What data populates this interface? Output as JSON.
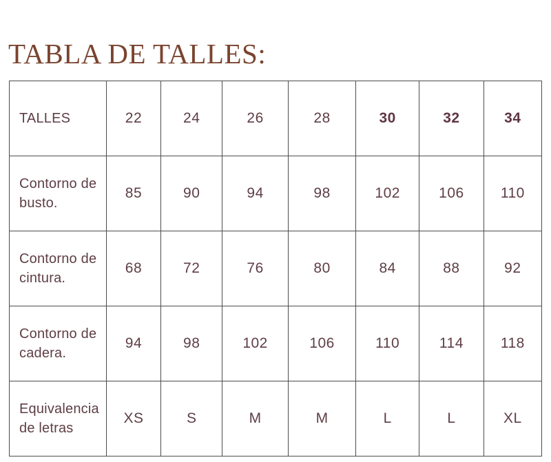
{
  "title": "TABLA DE TALLES:",
  "colors": {
    "title_text": "#7a4430",
    "table_text": "#5e3e45",
    "border": "#4b4b4b",
    "background": "#ffffff"
  },
  "table": {
    "rows": [
      {
        "label": "TALLES",
        "values": [
          "22",
          "24",
          "26",
          "28",
          "30",
          "32",
          "34"
        ],
        "emphasized": [
          "30",
          "32",
          "34"
        ]
      },
      {
        "label": "Contorno de busto.",
        "values": [
          "85",
          "90",
          "94",
          "98",
          "102",
          "106",
          "110"
        ],
        "emphasized": []
      },
      {
        "label": "Contorno de cintura.",
        "values": [
          "68",
          "72",
          "76",
          "80",
          "84",
          "88",
          "92"
        ],
        "emphasized": []
      },
      {
        "label": "Contorno de cadera.",
        "values": [
          "94",
          "98",
          "102",
          "106",
          "110",
          "114",
          "118"
        ],
        "emphasized": []
      },
      {
        "label": "Equivalencia de letras",
        "values": [
          "XS",
          "S",
          "M",
          "M",
          "L",
          "L",
          "XL"
        ],
        "emphasized": []
      }
    ]
  }
}
